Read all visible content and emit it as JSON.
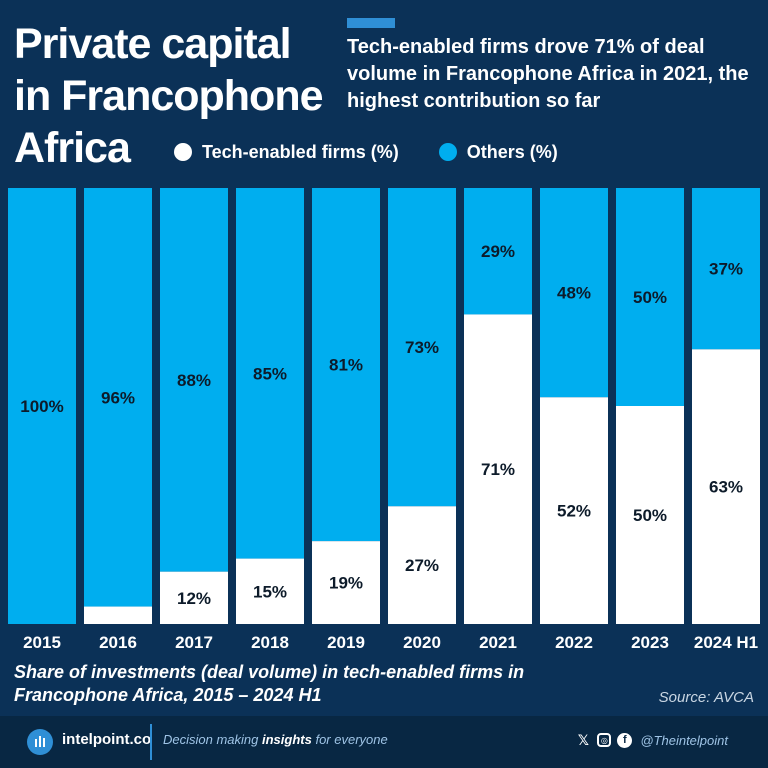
{
  "header": {
    "title": "Private capital in Francophone Africa",
    "subtitle": "Tech-enabled firms drove 71% of deal volume in Francophone Africa in 2021, the highest contribution so far"
  },
  "legend": [
    {
      "label": "Tech-enabled firms (%)",
      "color": "#ffffff"
    },
    {
      "label": "Others (%)",
      "color": "#00aeef"
    }
  ],
  "chart_data": {
    "type": "bar",
    "stacked": true,
    "orientation": "vertical",
    "categories": [
      "2015",
      "2016",
      "2017",
      "2018",
      "2019",
      "2020",
      "2021",
      "2022",
      "2023",
      "2024 H1"
    ],
    "series": [
      {
        "name": "Tech-enabled firms (%)",
        "color": "#ffffff",
        "values": [
          0,
          4,
          12,
          15,
          19,
          27,
          71,
          52,
          50,
          63
        ],
        "labels": [
          "",
          "",
          "12%",
          "15%",
          "19%",
          "27%",
          "71%",
          "52%",
          "50%",
          "63%"
        ]
      },
      {
        "name": "Others (%)",
        "color": "#00aeef",
        "values": [
          100,
          96,
          88,
          85,
          81,
          73,
          29,
          48,
          50,
          37
        ],
        "labels": [
          "100%",
          "96%",
          "88%",
          "85%",
          "81%",
          "73%",
          "29%",
          "48%",
          "50%",
          "37%"
        ]
      }
    ],
    "ylim": [
      0,
      100
    ],
    "xlabel": "",
    "ylabel": "",
    "grid": false
  },
  "caption": "Share of investments (deal volume) in tech-enabled firms in Francophone Africa, 2015 – 2024 H1",
  "source": "Source: AVCA",
  "footer": {
    "brand": "intelpoint.co",
    "tagline_before": "Decision making ",
    "tagline_bold": "insights",
    "tagline_after": " for everyone",
    "x_icon": "𝕏",
    "instagram_icon": "◎",
    "facebook_icon": "f",
    "handle": "@Theintelpoint"
  }
}
